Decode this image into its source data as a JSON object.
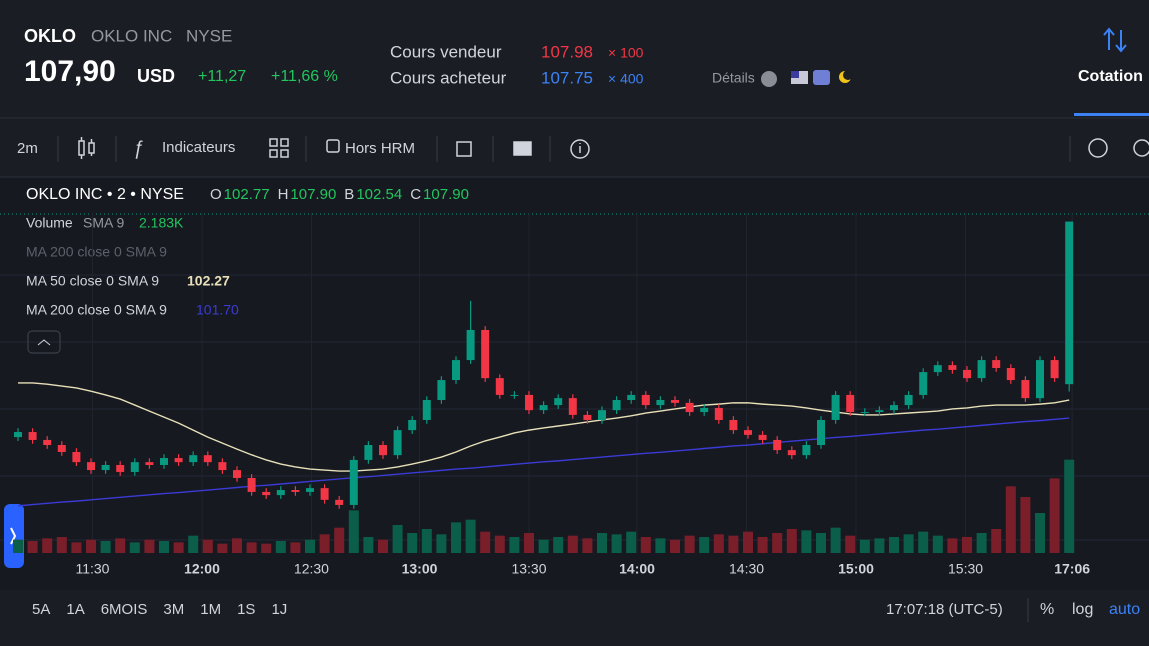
{
  "header": {
    "symbol": "OKLO",
    "name": "OKLO INC",
    "exchange": "NYSE",
    "price": "107,90",
    "currency": "USD",
    "change": "+11,27",
    "change_pct": "+11,66 %",
    "ask_label": "Cours vendeur",
    "ask": "107.98",
    "ask_size": "× 100",
    "bid_label": "Cours acheteur",
    "bid": "107.75",
    "bid_size": "× 400",
    "details": "Détails",
    "tab": "Cotation"
  },
  "toolbar": {
    "interval": "2m",
    "indicators": "Indicateurs",
    "extended": "Hors HRM"
  },
  "chart_data": {
    "type": "candlestick",
    "title": "OKLO INC • 2 • NYSE",
    "ohlc_legend": [
      {
        "label": "O",
        "value": "102.77"
      },
      {
        "label": "H",
        "value": "107.90"
      },
      {
        "label": "B",
        "value": "102.54"
      },
      {
        "label": "C",
        "value": "107.90"
      }
    ],
    "volume_legend": {
      "name": "Volume",
      "params": "SMA 9",
      "value": "2.183K"
    },
    "hidden_legend": "MA 200 close 0 SMA 9",
    "up_color": "#089981",
    "down_color": "#f23645",
    "ylim": [
      98.8,
      108.17
    ],
    "ohlc": [
      [
        101.1,
        101.38,
        100.98,
        101.26
      ],
      [
        101.26,
        101.38,
        100.89,
        101.01
      ],
      [
        101.01,
        101.13,
        100.73,
        100.85
      ],
      [
        100.85,
        100.97,
        100.51,
        100.63
      ],
      [
        100.63,
        100.75,
        100.19,
        100.31
      ],
      [
        100.31,
        100.43,
        99.94,
        100.06
      ],
      [
        100.06,
        100.34,
        99.94,
        100.22
      ],
      [
        100.22,
        100.34,
        99.88,
        100.0
      ],
      [
        100.0,
        100.43,
        99.88,
        100.31
      ],
      [
        100.31,
        100.43,
        100.1,
        100.22
      ],
      [
        100.22,
        100.56,
        100.1,
        100.44
      ],
      [
        100.44,
        100.56,
        100.19,
        100.31
      ],
      [
        100.31,
        100.65,
        100.19,
        100.53
      ],
      [
        100.53,
        100.65,
        100.19,
        100.31
      ],
      [
        100.31,
        100.43,
        99.94,
        100.06
      ],
      [
        100.06,
        100.18,
        99.69,
        99.81
      ],
      [
        99.81,
        99.93,
        99.25,
        99.37
      ],
      [
        99.37,
        99.49,
        99.15,
        99.27
      ],
      [
        99.27,
        99.55,
        99.15,
        99.43
      ],
      [
        99.43,
        99.55,
        99.25,
        99.37
      ],
      [
        99.37,
        99.61,
        99.25,
        99.49
      ],
      [
        99.49,
        99.61,
        99.0,
        99.12
      ],
      [
        99.12,
        99.24,
        98.84,
        98.96
      ],
      [
        98.96,
        100.5,
        98.84,
        100.38
      ],
      [
        100.38,
        100.97,
        100.26,
        100.85
      ],
      [
        100.85,
        100.97,
        100.41,
        100.53
      ],
      [
        100.53,
        101.44,
        100.41,
        101.32
      ],
      [
        101.32,
        101.76,
        101.2,
        101.64
      ],
      [
        101.64,
        102.39,
        101.52,
        102.27
      ],
      [
        102.27,
        103.02,
        102.15,
        102.9
      ],
      [
        102.9,
        103.65,
        102.78,
        103.53
      ],
      [
        103.53,
        105.4,
        103.41,
        104.48
      ],
      [
        104.48,
        104.6,
        102.84,
        102.96
      ],
      [
        102.96,
        103.08,
        102.31,
        102.43
      ],
      [
        102.43,
        102.55,
        102.31,
        102.43
      ],
      [
        102.43,
        102.55,
        101.83,
        101.95
      ],
      [
        101.95,
        102.23,
        101.83,
        102.11
      ],
      [
        102.11,
        102.45,
        101.99,
        102.33
      ],
      [
        102.33,
        102.45,
        101.68,
        101.8
      ],
      [
        101.8,
        101.92,
        101.52,
        101.64
      ],
      [
        101.64,
        102.07,
        101.52,
        101.95
      ],
      [
        101.95,
        102.39,
        101.83,
        102.27
      ],
      [
        102.27,
        102.55,
        102.15,
        102.43
      ],
      [
        102.43,
        102.55,
        101.99,
        102.11
      ],
      [
        102.11,
        102.39,
        101.99,
        102.27
      ],
      [
        102.27,
        102.39,
        102.06,
        102.18
      ],
      [
        102.18,
        102.3,
        101.77,
        101.89
      ],
      [
        101.89,
        102.14,
        101.77,
        102.02
      ],
      [
        102.02,
        102.14,
        101.52,
        101.64
      ],
      [
        101.64,
        101.76,
        101.2,
        101.32
      ],
      [
        101.32,
        101.44,
        101.05,
        101.17
      ],
      [
        101.17,
        101.29,
        100.89,
        101.01
      ],
      [
        101.01,
        101.13,
        100.57,
        100.69
      ],
      [
        100.69,
        100.81,
        100.41,
        100.53
      ],
      [
        100.53,
        100.97,
        100.41,
        100.85
      ],
      [
        100.85,
        101.76,
        100.73,
        101.64
      ],
      [
        101.64,
        102.55,
        101.52,
        102.43
      ],
      [
        102.43,
        102.55,
        101.77,
        101.89
      ],
      [
        101.89,
        102.01,
        101.77,
        101.89
      ],
      [
        101.89,
        102.07,
        101.77,
        101.95
      ],
      [
        101.95,
        102.23,
        101.83,
        102.11
      ],
      [
        102.11,
        102.55,
        101.99,
        102.43
      ],
      [
        102.43,
        103.27,
        102.31,
        103.15
      ],
      [
        103.15,
        103.49,
        103.03,
        103.37
      ],
      [
        103.37,
        103.49,
        103.1,
        103.22
      ],
      [
        103.22,
        103.34,
        102.84,
        102.96
      ],
      [
        102.96,
        103.65,
        102.84,
        103.53
      ],
      [
        103.53,
        103.65,
        103.16,
        103.28
      ],
      [
        103.28,
        103.4,
        102.78,
        102.9
      ],
      [
        102.9,
        103.02,
        102.21,
        102.33
      ],
      [
        102.33,
        103.65,
        102.21,
        103.53
      ],
      [
        103.53,
        103.65,
        102.84,
        102.96
      ],
      [
        102.77,
        107.9,
        102.54,
        107.9
      ]
    ],
    "volume": {
      "vlim": [
        0,
        7.5
      ],
      "values": [
        1.0,
        0.9,
        1.1,
        1.2,
        0.8,
        1.0,
        0.9,
        1.1,
        0.8,
        1.0,
        0.9,
        0.8,
        1.3,
        1.0,
        0.7,
        1.1,
        0.8,
        0.7,
        0.9,
        0.8,
        1.0,
        1.4,
        1.9,
        3.2,
        1.2,
        1.0,
        2.1,
        1.5,
        1.8,
        1.4,
        2.3,
        2.5,
        1.6,
        1.3,
        1.2,
        1.5,
        1.0,
        1.2,
        1.3,
        1.1,
        1.5,
        1.4,
        1.6,
        1.2,
        1.1,
        1.0,
        1.3,
        1.2,
        1.4,
        1.3,
        1.6,
        1.2,
        1.5,
        1.8,
        1.7,
        1.5,
        1.9,
        1.3,
        1.0,
        1.1,
        1.2,
        1.4,
        1.6,
        1.3,
        1.1,
        1.2,
        1.5,
        1.8,
        5.0,
        4.2,
        3.0,
        5.6,
        7.0
      ]
    },
    "series": [
      {
        "name": "MA 50 close 0 SMA 9",
        "last_label": "102.27",
        "color": "#e8e0b8",
        "values": [
          102.81,
          102.81,
          102.77,
          102.71,
          102.65,
          102.55,
          102.43,
          102.3,
          102.11,
          101.92,
          101.73,
          101.54,
          101.32,
          101.1,
          100.91,
          100.72,
          100.54,
          100.38,
          100.25,
          100.16,
          100.09,
          100.06,
          100.03,
          100.03,
          100.06,
          100.09,
          100.16,
          100.25,
          100.35,
          100.47,
          100.63,
          100.82,
          100.98,
          101.1,
          101.23,
          101.32,
          101.39,
          101.45,
          101.51,
          101.58,
          101.64,
          101.7,
          101.77,
          101.86,
          101.92,
          101.99,
          102.05,
          102.11,
          102.14,
          102.18,
          102.18,
          102.14,
          102.11,
          102.08,
          102.02,
          101.95,
          101.89,
          101.83,
          101.8,
          101.8,
          101.83,
          101.86,
          101.89,
          101.92,
          101.99,
          102.02,
          102.08,
          102.11,
          102.11,
          102.11,
          102.14,
          102.18,
          102.27
        ]
      },
      {
        "name": "MA 200 close 0 SMA 9",
        "last_label": "101.70",
        "color": "#3b3bd6",
        "values": [
          98.93,
          98.97,
          99.01,
          99.05,
          99.08,
          99.12,
          99.16,
          99.2,
          99.24,
          99.28,
          99.32,
          99.35,
          99.39,
          99.43,
          99.47,
          99.51,
          99.55,
          99.58,
          99.62,
          99.66,
          99.7,
          99.74,
          99.78,
          99.82,
          99.85,
          99.89,
          99.93,
          99.97,
          100.01,
          100.05,
          100.09,
          100.12,
          100.16,
          100.2,
          100.24,
          100.28,
          100.32,
          100.35,
          100.39,
          100.43,
          100.47,
          100.51,
          100.55,
          100.59,
          100.62,
          100.66,
          100.7,
          100.74,
          100.78,
          100.82,
          100.85,
          100.89,
          100.93,
          100.97,
          101.01,
          101.05,
          101.09,
          101.12,
          101.16,
          101.2,
          101.24,
          101.28,
          101.32,
          101.35,
          101.39,
          101.43,
          101.47,
          101.51,
          101.55,
          101.59,
          101.62,
          101.66,
          101.7
        ]
      }
    ],
    "xticks": [
      {
        "value": 5.1,
        "label": "11:30"
      },
      {
        "value": 12.6,
        "label": "12:00"
      },
      {
        "value": 20.1,
        "label": "12:30"
      },
      {
        "value": 27.5,
        "label": "13:00"
      },
      {
        "value": 35,
        "label": "13:30"
      },
      {
        "value": 42.4,
        "label": "14:00"
      },
      {
        "value": 49.9,
        "label": "14:30"
      },
      {
        "value": 57.4,
        "label": "15:00"
      },
      {
        "value": 64.9,
        "label": "15:30"
      },
      {
        "value": 72.2,
        "label": "17:06"
      }
    ],
    "grid": true
  },
  "footer": {
    "ranges": [
      "5A",
      "1A",
      "6MOIS",
      "3M",
      "1M",
      "1S",
      "1J"
    ],
    "time": "17:07:18 (UTC-5)",
    "pct": "%",
    "log": "log",
    "auto": "auto"
  }
}
